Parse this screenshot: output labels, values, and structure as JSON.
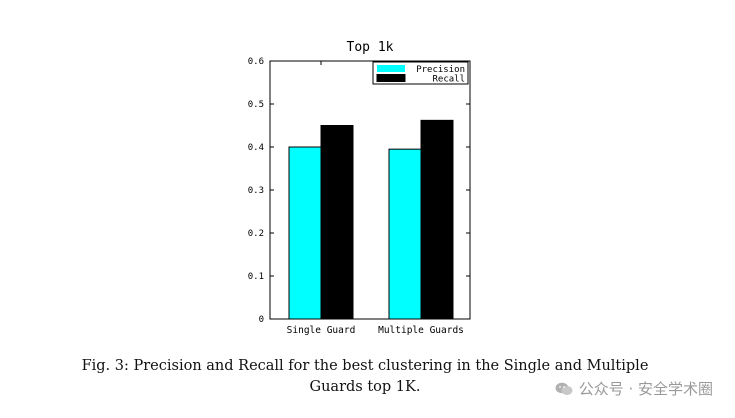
{
  "chart_data": {
    "type": "bar",
    "title": "Top 1k",
    "categories": [
      "Single Guard",
      "Multiple Guards"
    ],
    "series": [
      {
        "name": "Precision",
        "values": [
          0.4,
          0.395
        ],
        "color": "#00FFFF"
      },
      {
        "name": "Recall",
        "values": [
          0.45,
          0.462
        ],
        "color": "#000000"
      }
    ],
    "ylim": [
      0,
      0.6
    ],
    "yticks": [
      "0",
      "0.1",
      "0.2",
      "0.3",
      "0.4",
      "0.5",
      "0.6"
    ],
    "ytick_values": [
      0,
      0.1,
      0.2,
      0.3,
      0.4,
      0.5,
      0.6
    ],
    "legend_position": "top-right",
    "grid": false
  },
  "caption": {
    "line1": "Fig. 3: Precision and Recall for the best clustering in the Single and Multiple",
    "line2": "Guards top 1K."
  },
  "watermark": {
    "text": "公众号 · 安全学术圈",
    "icon": "wechat-icon"
  }
}
